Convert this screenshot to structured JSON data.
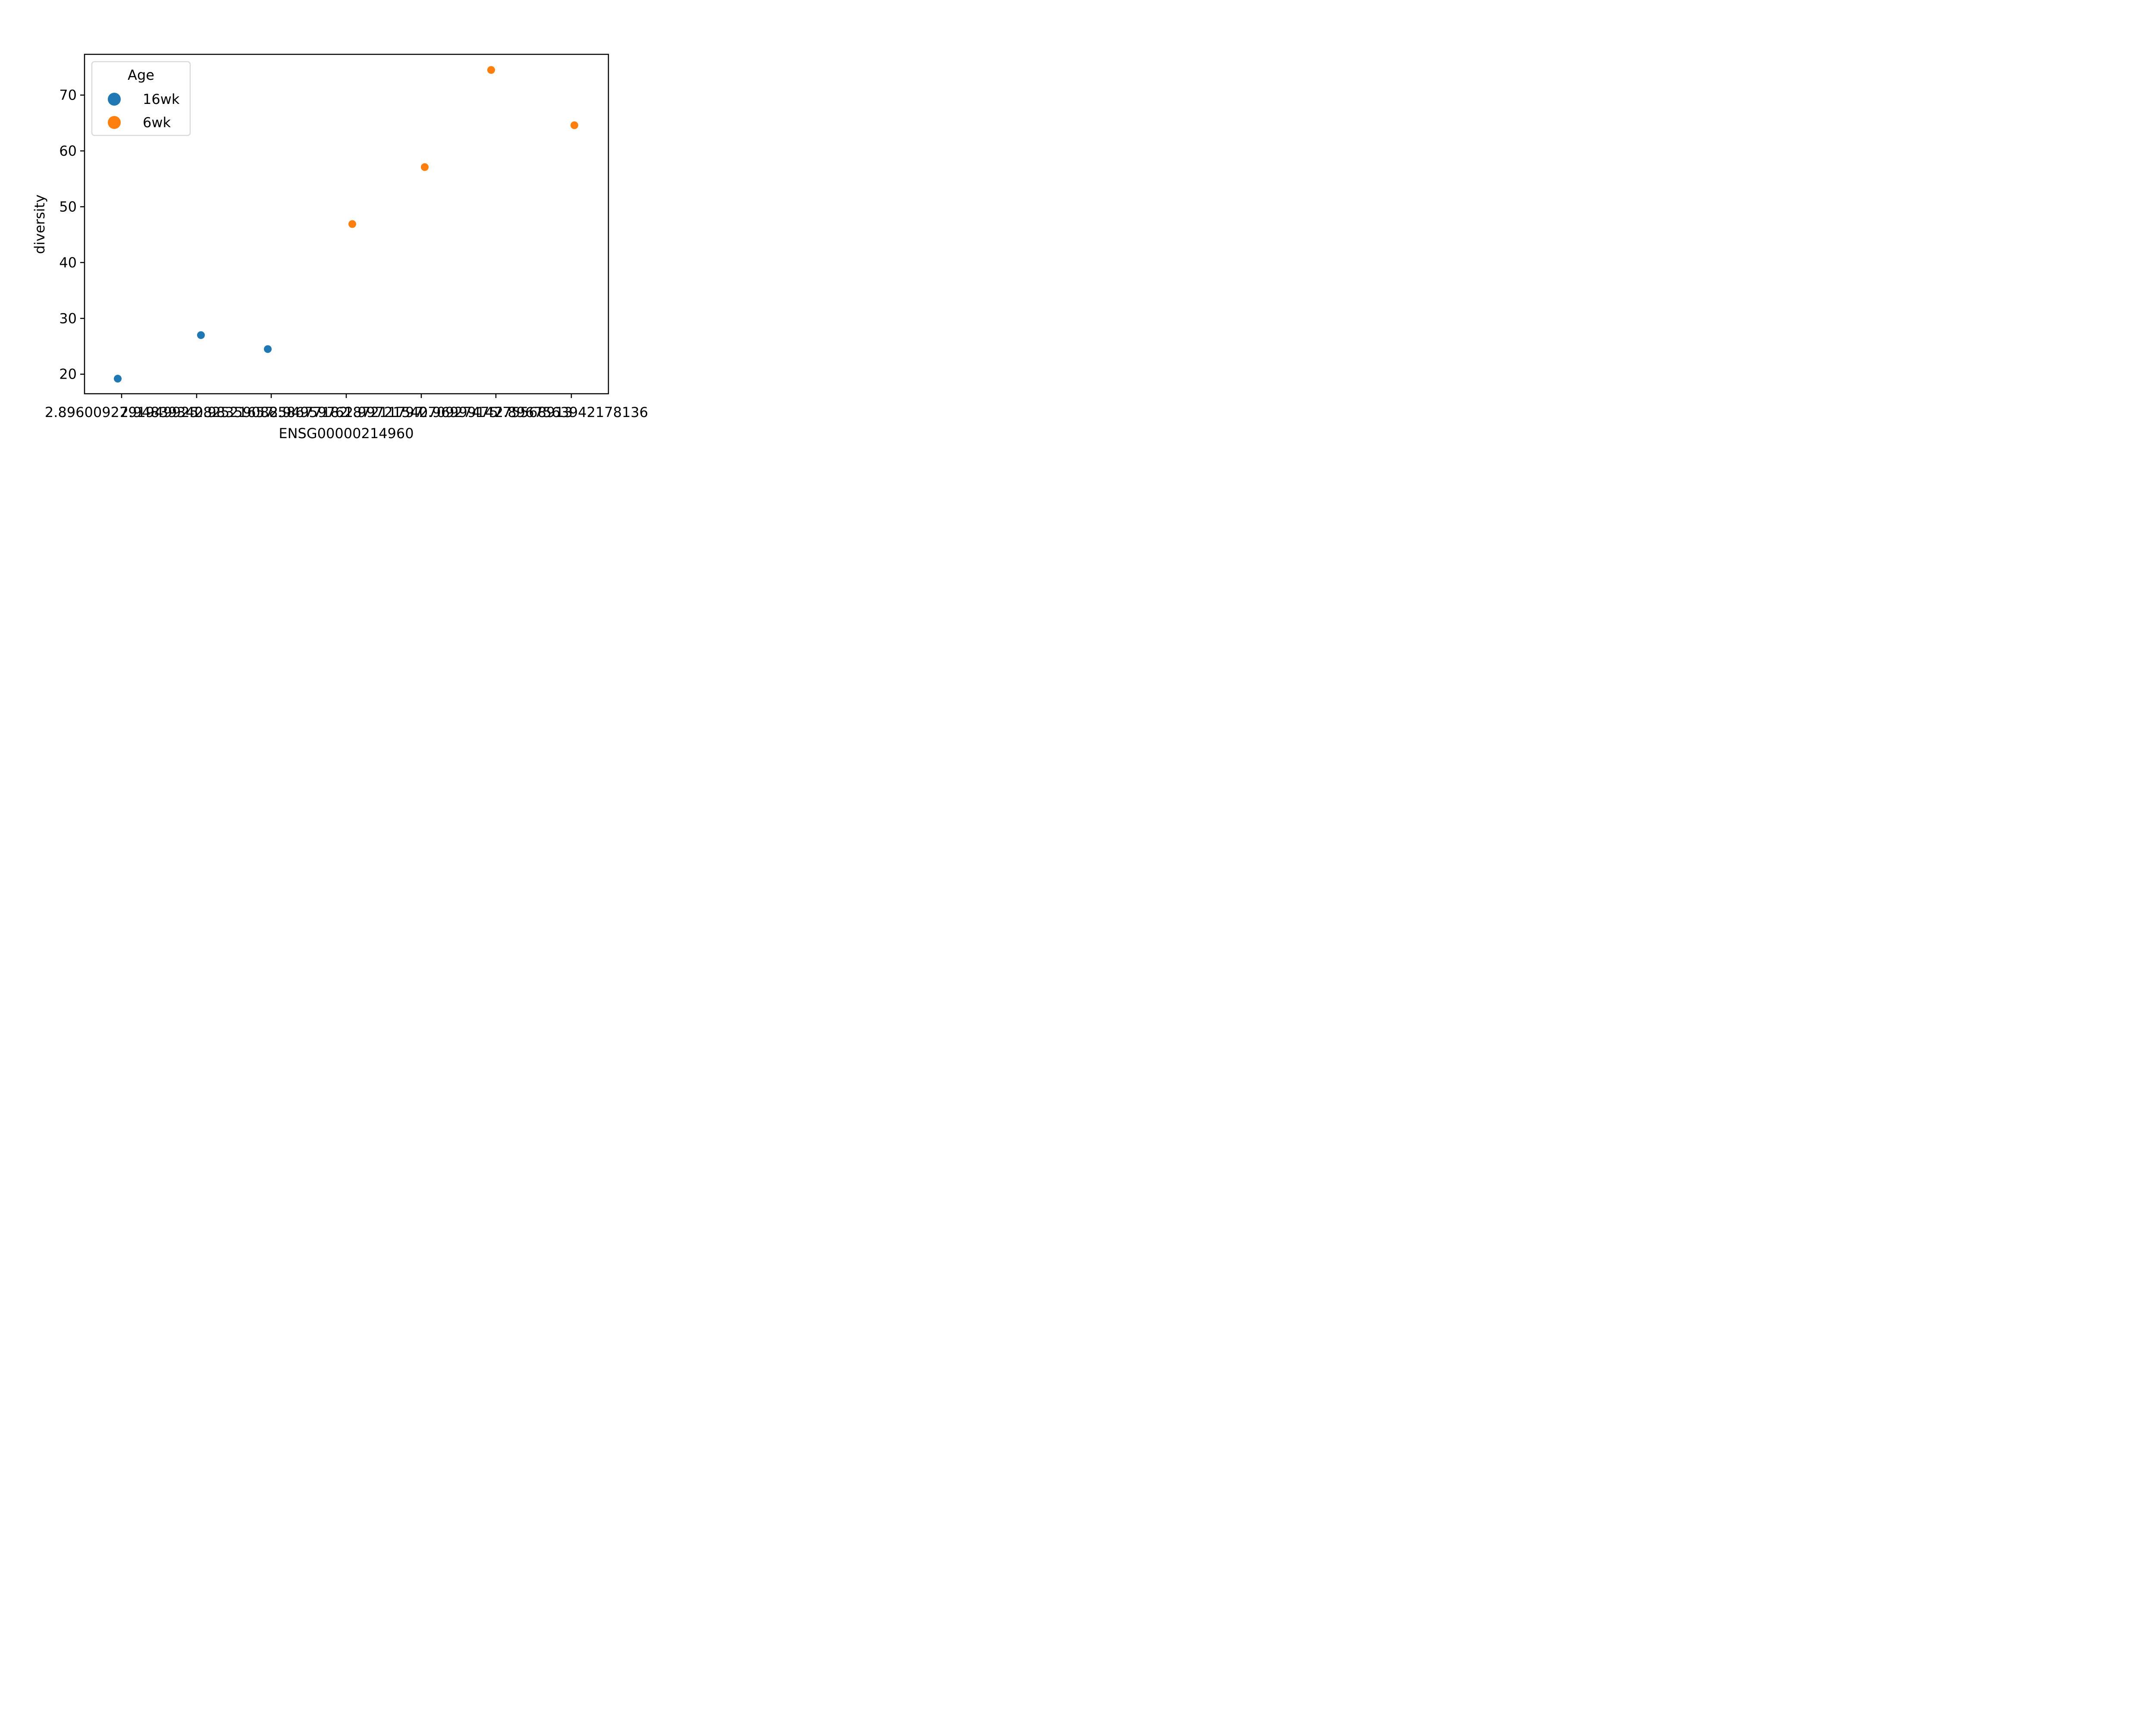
{
  "chart_data": {
    "type": "scatter",
    "title": "",
    "xlabel": "ENSG00000214960",
    "ylabel": "diversity",
    "ylim": [
      16.5,
      77.3
    ],
    "y_ticks": [
      20,
      30,
      40,
      50,
      60,
      70
    ],
    "x_tick_labels": [
      "2.8960092791949925",
      "2.9483934082521657",
      "2.9835908858677182",
      "2.9495976187211797",
      "2.9972154070927475",
      "2.9699914775568913",
      "2.8967563942178136"
    ],
    "grid": false,
    "legend": {
      "title": "Age",
      "position": "top-left"
    },
    "series": [
      {
        "name": "16wk",
        "color": "#1f77b4",
        "points": [
          {
            "x_index": 0,
            "y": 19.2
          },
          {
            "x_index": 1,
            "y": 27.0
          },
          {
            "x_index": 2,
            "y": 24.5
          }
        ]
      },
      {
        "name": "6wk",
        "color": "#ff7f0e",
        "points": [
          {
            "x_index": 3,
            "y": 46.9
          },
          {
            "x_index": 4,
            "y": 57.1
          },
          {
            "x_index": 5,
            "y": 74.5
          },
          {
            "x_index": 6,
            "y": 64.6
          }
        ]
      }
    ]
  }
}
